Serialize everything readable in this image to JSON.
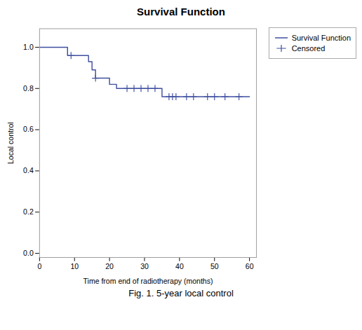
{
  "chart_data": {
    "type": "step",
    "title": "Survival Function",
    "xlabel": "Time from end of radiotherapy (months)",
    "ylabel": "Local control",
    "caption": "Fig. 1. 5-year local control",
    "xlim": [
      0,
      62
    ],
    "ylim": [
      -0.02,
      1.09
    ],
    "xticks": [
      0,
      10,
      20,
      30,
      40,
      50,
      60
    ],
    "yticks": [
      {
        "value": 0.0,
        "label": "0.0"
      },
      0.2,
      0.4,
      0.6,
      0.8,
      {
        "value": 1.0,
        "label": "1.0"
      }
    ],
    "grid": false,
    "legend": "upper right",
    "series": [
      {
        "name": "Survival Function",
        "type": "step",
        "color": "#3F4FA0",
        "line_style": "solid",
        "x": [
          0,
          8,
          8,
          10,
          14,
          14,
          15,
          15,
          16,
          16,
          20,
          20,
          22,
          22,
          25,
          27,
          29,
          31,
          33,
          35,
          35,
          37,
          38,
          39,
          40,
          42,
          44,
          45,
          48,
          50,
          51,
          53,
          55,
          57,
          60
        ],
        "values": [
          1.0,
          1.0,
          0.96,
          0.96,
          0.96,
          0.93,
          0.93,
          0.89,
          0.89,
          0.85,
          0.85,
          0.82,
          0.82,
          0.8,
          0.8,
          0.8,
          0.8,
          0.8,
          0.8,
          0.8,
          0.76,
          0.76,
          0.76,
          0.76,
          0.76,
          0.76,
          0.76,
          0.76,
          0.76,
          0.76,
          0.76,
          0.76,
          0.76,
          0.76,
          0.76
        ]
      },
      {
        "name": "Censored",
        "type": "scatter",
        "color": "#3F4FA0",
        "marker": "plus",
        "x": [
          9,
          16,
          25,
          27,
          29,
          31,
          33,
          37,
          38,
          39,
          42,
          44,
          48,
          50,
          53,
          57
        ],
        "values": [
          0.96,
          0.85,
          0.8,
          0.8,
          0.8,
          0.8,
          0.8,
          0.76,
          0.76,
          0.76,
          0.76,
          0.76,
          0.76,
          0.76,
          0.76,
          0.76
        ]
      }
    ]
  }
}
